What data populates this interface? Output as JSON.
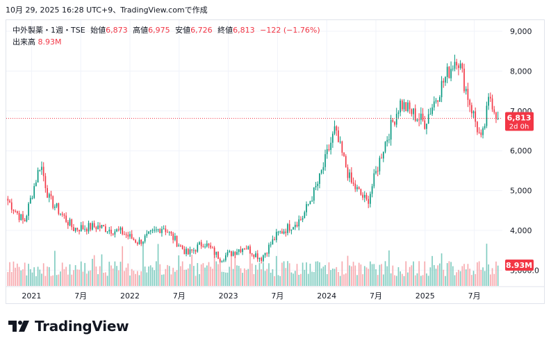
{
  "header": {
    "timestamp": "10月 29, 2025 16:28 UTC+9、TradingView.comで作成"
  },
  "legend": {
    "symbol": "中外製薬・1週・TSE",
    "open_label": "始値",
    "open": "6,873",
    "high_label": "高値",
    "high": "6,975",
    "low_label": "安値",
    "low": "6,726",
    "close_label": "終値",
    "close": "6,813",
    "change": "−122 (−1.76%)",
    "volume_label": "出来高",
    "volume": "8.93M"
  },
  "price_tag": {
    "price": "6,813",
    "countdown": "2d 0h"
  },
  "volume_tag": "8.93M",
  "brand": {
    "name": "TradingView"
  },
  "colors": {
    "up": "#089981",
    "down": "#f23645",
    "up_vol": "#80ccc0",
    "down_vol": "#f7a9ae",
    "grid": "#f0f3fa"
  },
  "chart_data": {
    "type": "candlestick",
    "y_axis": {
      "ticks": [
        "9,000",
        "8,000",
        "7,000",
        "6,000",
        "5,000",
        "4,000",
        "3,000.0"
      ],
      "tick_values": [
        9000,
        8000,
        7000,
        6000,
        5000,
        4000,
        3000
      ]
    },
    "x_axis": {
      "labels": [
        "2021",
        "7月",
        "2022",
        "7月",
        "2023",
        "7月",
        "2024",
        "7月",
        "2025",
        "7月"
      ]
    },
    "time_span": "2020-10 to 2025-10 (weekly)",
    "last_close": 6813,
    "anchor_points": [
      [
        "2020-10",
        4750
      ],
      [
        "2020-12",
        4200
      ],
      [
        "2021-02",
        5700
      ],
      [
        "2021-03",
        4800
      ],
      [
        "2021-06",
        4050
      ],
      [
        "2021-09",
        4100
      ],
      [
        "2021-12",
        3950
      ],
      [
        "2022-02",
        3700
      ],
      [
        "2022-05",
        4100
      ],
      [
        "2022-08",
        3400
      ],
      [
        "2022-10",
        3700
      ],
      [
        "2022-12",
        3300
      ],
      [
        "2023-03",
        3600
      ],
      [
        "2023-05",
        3300
      ],
      [
        "2023-07",
        3900
      ],
      [
        "2023-10",
        4300
      ],
      [
        "2023-12",
        5200
      ],
      [
        "2024-02",
        6500
      ],
      [
        "2024-04",
        5200
      ],
      [
        "2024-06",
        4700
      ],
      [
        "2024-08",
        6100
      ],
      [
        "2024-10",
        7200
      ],
      [
        "2025-01",
        6700
      ],
      [
        "2025-03",
        7600
      ],
      [
        "2025-05",
        8400
      ],
      [
        "2025-06",
        7600
      ],
      [
        "2025-08",
        6200
      ],
      [
        "2025-09",
        7400
      ],
      [
        "2025-10",
        6813
      ]
    ],
    "volume_last": "8.93M"
  }
}
